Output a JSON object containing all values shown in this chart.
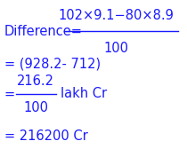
{
  "line1_prefix": "Difference=",
  "line1_numerator": "102×9.1−80×8.9",
  "line1_denominator": "100",
  "line2": "= (928.2- 712)",
  "line3_eq": "=",
  "line3_numerator": "216.2",
  "line3_denominator": "100",
  "line3_suffix": "lakh Cr",
  "line4": "= 216200 Cr",
  "bg_color": "#ffffff",
  "text_color": "#1a1aff",
  "font_size": 10.5
}
